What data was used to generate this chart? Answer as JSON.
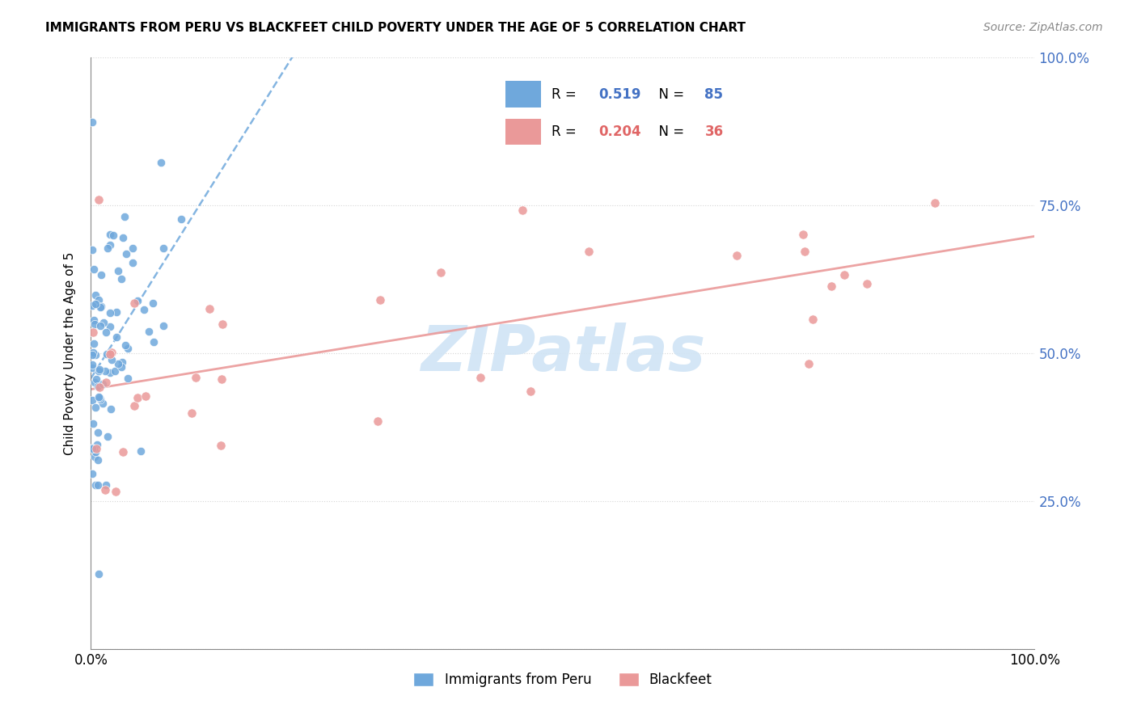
{
  "title": "IMMIGRANTS FROM PERU VS BLACKFEET CHILD POVERTY UNDER THE AGE OF 5 CORRELATION CHART",
  "source": "Source: ZipAtlas.com",
  "ylabel": "Child Poverty Under the Age of 5",
  "legend_label1": "Immigrants from Peru",
  "legend_label2": "Blackfeet",
  "R1": 0.519,
  "N1": 85,
  "R2": 0.204,
  "N2": 36,
  "color_blue": "#6fa8dc",
  "color_pink": "#ea9999",
  "color_blue_dark": "#4472c4",
  "color_pink_dark": "#e06666",
  "watermark_color": "#d0e4f5",
  "grid_color": "#cccccc",
  "seed": 42
}
